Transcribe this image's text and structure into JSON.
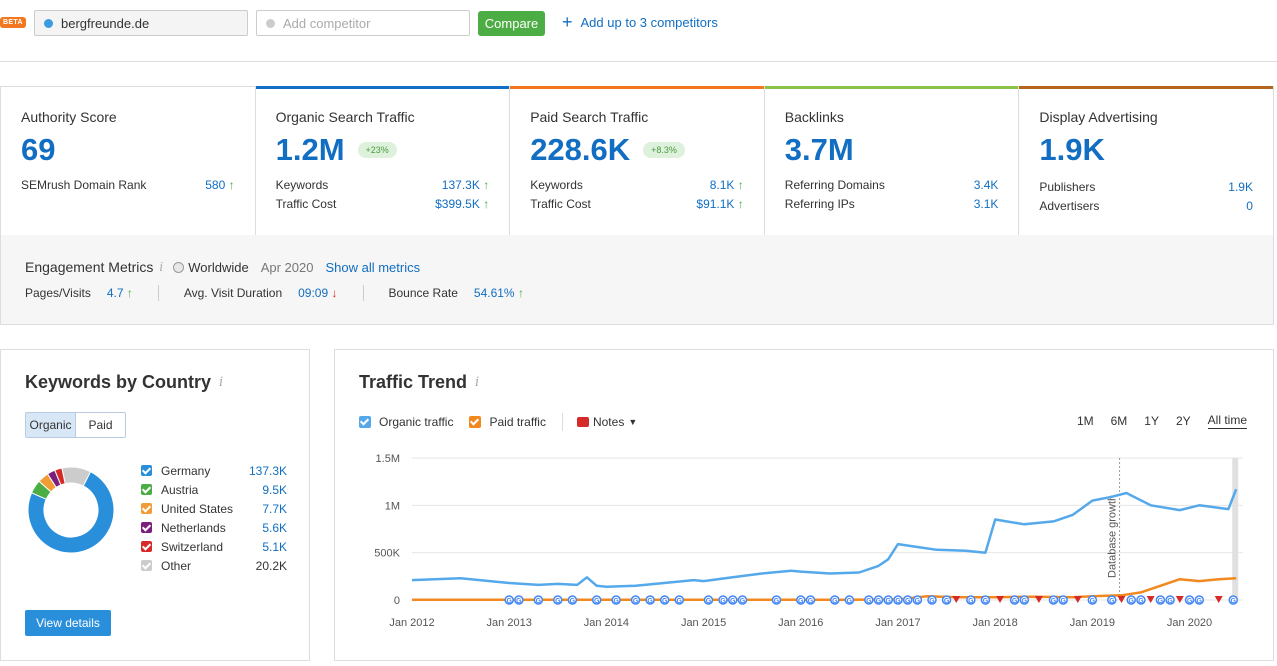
{
  "header": {
    "beta": "BETA",
    "domain": "bergfreunde.de",
    "domain_color": "#3a9be0",
    "competitor_placeholder": "Add competitor",
    "compare": "Compare",
    "add_up": "Add up to 3 competitors"
  },
  "cards": [
    {
      "title": "Authority Score",
      "value": "69",
      "bar_color": "",
      "rows": [
        {
          "label": "SEMrush Domain Rank",
          "value": "580",
          "trend": "↑"
        }
      ]
    },
    {
      "title": "Organic Search Traffic",
      "value": "1.2M",
      "badge": "+23%",
      "bar_color": "#116ec2",
      "rows": [
        {
          "label": "Keywords",
          "value": "137.3K",
          "trend": "↑"
        },
        {
          "label": "Traffic Cost",
          "value": "$399.5K",
          "trend": "↑"
        }
      ]
    },
    {
      "title": "Paid Search Traffic",
      "value": "228.6K",
      "badge": "+8.3%",
      "bar_color": "#f2771f",
      "rows": [
        {
          "label": "Keywords",
          "value": "8.1K",
          "trend": "↑"
        },
        {
          "label": "Traffic Cost",
          "value": "$91.1K",
          "trend": "↑"
        }
      ]
    },
    {
      "title": "Backlinks",
      "value": "3.7M",
      "bar_color": "#8bc34a",
      "rows": [
        {
          "label": "Referring Domains",
          "value": "3.4K",
          "trend": ""
        },
        {
          "label": "Referring IPs",
          "value": "3.1K",
          "trend": ""
        }
      ]
    },
    {
      "title": "Display Advertising",
      "value": "1.9K",
      "bar_color": "#b5651d",
      "rows": [
        {
          "label": "Publishers",
          "value": "1.9K",
          "trend": ""
        },
        {
          "label": "Advertisers",
          "value": "0",
          "trend": ""
        }
      ]
    }
  ],
  "engagement": {
    "title": "Engagement Metrics",
    "info": "i",
    "region": "Worldwide",
    "date": "Apr 2020",
    "show_all": "Show all metrics",
    "pages_label": "Pages/Visits",
    "pages_value": "4.7",
    "pages_trend": "↑",
    "duration_label": "Avg. Visit Duration",
    "duration_value": "09:09",
    "duration_trend": "↓",
    "bounce_label": "Bounce Rate",
    "bounce_value": "54.61%",
    "bounce_trend": "↑"
  },
  "kbc": {
    "title": "Keywords by Country",
    "info": "i",
    "tab_organic": "Organic",
    "tab_paid": "Paid",
    "view_details": "View details",
    "countries": [
      {
        "name": "Germany",
        "value": "137.3K",
        "num": 137.3,
        "color": "#2a8fdb"
      },
      {
        "name": "Austria",
        "value": "9.5K",
        "num": 9.5,
        "color": "#4cad45"
      },
      {
        "name": "United States",
        "value": "7.7K",
        "num": 7.7,
        "color": "#f29c38"
      },
      {
        "name": "Netherlands",
        "value": "5.6K",
        "num": 5.6,
        "color": "#7b1f7d"
      },
      {
        "name": "Switzerland",
        "value": "5.1K",
        "num": 5.1,
        "color": "#d62a28"
      },
      {
        "name": "Other",
        "value": "20.2K",
        "num": 20.2,
        "color": "#cccccc"
      }
    ]
  },
  "trend": {
    "title": "Traffic Trend",
    "info": "i",
    "organic_label": "Organic traffic",
    "paid_label": "Paid traffic",
    "notes_label": "Notes",
    "ranges": [
      "1M",
      "6M",
      "1Y",
      "2Y",
      "All time"
    ],
    "active_range": "All time",
    "annotation": "Database growth",
    "note_marker": "G"
  },
  "chart_data": {
    "type": "line",
    "ylim": [
      0,
      1500000
    ],
    "yticks": [
      "0",
      "500K",
      "1M",
      "1.5M"
    ],
    "xticks": [
      "Jan 2012",
      "Jan 2013",
      "Jan 2014",
      "Jan 2015",
      "Jan 2016",
      "Jan 2017",
      "Jan 2018",
      "Jan 2019",
      "Jan 2020"
    ],
    "series": [
      {
        "name": "Organic traffic",
        "color": "#55a9ea",
        "points": [
          [
            2012.0,
            210000
          ],
          [
            2012.5,
            230000
          ],
          [
            2012.8,
            200000
          ],
          [
            2013.0,
            180000
          ],
          [
            2013.3,
            160000
          ],
          [
            2013.5,
            170000
          ],
          [
            2013.7,
            160000
          ],
          [
            2013.8,
            240000
          ],
          [
            2013.9,
            150000
          ],
          [
            2014.0,
            140000
          ],
          [
            2014.3,
            150000
          ],
          [
            2014.5,
            170000
          ],
          [
            2014.7,
            190000
          ],
          [
            2014.9,
            210000
          ],
          [
            2015.0,
            200000
          ],
          [
            2015.3,
            240000
          ],
          [
            2015.6,
            280000
          ],
          [
            2015.9,
            310000
          ],
          [
            2016.0,
            300000
          ],
          [
            2016.3,
            280000
          ],
          [
            2016.6,
            290000
          ],
          [
            2016.8,
            360000
          ],
          [
            2016.9,
            430000
          ],
          [
            2017.0,
            590000
          ],
          [
            2017.2,
            560000
          ],
          [
            2017.4,
            530000
          ],
          [
            2017.7,
            520000
          ],
          [
            2017.9,
            500000
          ],
          [
            2018.0,
            850000
          ],
          [
            2018.3,
            800000
          ],
          [
            2018.6,
            830000
          ],
          [
            2018.8,
            900000
          ],
          [
            2019.0,
            1050000
          ],
          [
            2019.2,
            1090000
          ],
          [
            2019.35,
            1130000
          ],
          [
            2019.6,
            1000000
          ],
          [
            2019.9,
            950000
          ],
          [
            2020.1,
            1000000
          ],
          [
            2020.4,
            960000
          ],
          [
            2020.48,
            1170000
          ]
        ]
      },
      {
        "name": "Paid traffic",
        "color": "#f2891f",
        "points": [
          [
            2012.0,
            2000
          ],
          [
            2016.5,
            2000
          ],
          [
            2017.0,
            5000
          ],
          [
            2017.3,
            40000
          ],
          [
            2017.6,
            30000
          ],
          [
            2018.0,
            30000
          ],
          [
            2018.4,
            35000
          ],
          [
            2018.8,
            30000
          ],
          [
            2019.0,
            40000
          ],
          [
            2019.3,
            50000
          ],
          [
            2019.5,
            80000
          ],
          [
            2019.7,
            150000
          ],
          [
            2019.9,
            220000
          ],
          [
            2020.1,
            200000
          ],
          [
            2020.3,
            220000
          ],
          [
            2020.48,
            230000
          ]
        ]
      }
    ]
  }
}
